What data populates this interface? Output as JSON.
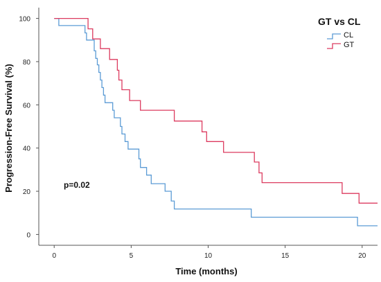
{
  "chart_data": {
    "type": "line",
    "step": true,
    "xlabel": "Time (months)",
    "ylabel": "Progression-Free Survival (%)",
    "xlim": [
      -1,
      21
    ],
    "ylim": [
      -5,
      105
    ],
    "xticks": [
      0,
      5,
      10,
      15,
      20
    ],
    "yticks": [
      0,
      20,
      40,
      60,
      80,
      100
    ],
    "legend": {
      "title": "GT vs CL",
      "position": "top-right"
    },
    "annotation": "p=0.02",
    "series": [
      {
        "name": "CL",
        "color": "#5b9bd5",
        "points": [
          [
            0,
            100
          ],
          [
            0.3,
            100
          ],
          [
            0.3,
            96.7
          ],
          [
            2.0,
            96.7
          ],
          [
            2.0,
            93.3
          ],
          [
            2.1,
            93.3
          ],
          [
            2.1,
            90
          ],
          [
            2.6,
            90
          ],
          [
            2.6,
            85
          ],
          [
            2.7,
            85
          ],
          [
            2.7,
            81.5
          ],
          [
            2.8,
            81.5
          ],
          [
            2.8,
            78.5
          ],
          [
            2.9,
            78.5
          ],
          [
            2.9,
            75
          ],
          [
            3.0,
            75
          ],
          [
            3.0,
            71.5
          ],
          [
            3.1,
            71.5
          ],
          [
            3.1,
            68
          ],
          [
            3.2,
            68
          ],
          [
            3.2,
            64.5
          ],
          [
            3.3,
            64.5
          ],
          [
            3.3,
            61
          ],
          [
            3.8,
            61
          ],
          [
            3.8,
            57.5
          ],
          [
            3.9,
            57.5
          ],
          [
            3.9,
            54
          ],
          [
            4.3,
            54
          ],
          [
            4.3,
            50
          ],
          [
            4.4,
            50
          ],
          [
            4.4,
            46.5
          ],
          [
            4.6,
            46.5
          ],
          [
            4.6,
            43
          ],
          [
            4.8,
            43
          ],
          [
            4.8,
            39.5
          ],
          [
            5.5,
            39.5
          ],
          [
            5.5,
            35
          ],
          [
            5.6,
            35
          ],
          [
            5.6,
            31
          ],
          [
            6.0,
            31
          ],
          [
            6.0,
            27.5
          ],
          [
            6.3,
            27.5
          ],
          [
            6.3,
            23.5
          ],
          [
            7.2,
            23.5
          ],
          [
            7.2,
            20
          ],
          [
            7.6,
            20
          ],
          [
            7.6,
            15.5
          ],
          [
            7.8,
            15.5
          ],
          [
            7.8,
            11.8
          ],
          [
            12.8,
            11.8
          ],
          [
            12.8,
            8
          ],
          [
            19.7,
            8
          ],
          [
            19.7,
            4
          ],
          [
            21,
            4
          ]
        ]
      },
      {
        "name": "GT",
        "color": "#dc3a5f",
        "points": [
          [
            0,
            100
          ],
          [
            2.2,
            100
          ],
          [
            2.2,
            95.2
          ],
          [
            2.5,
            95.2
          ],
          [
            2.5,
            90.5
          ],
          [
            3.0,
            90.5
          ],
          [
            3.0,
            86
          ],
          [
            3.6,
            86
          ],
          [
            3.6,
            81
          ],
          [
            4.1,
            81
          ],
          [
            4.1,
            76
          ],
          [
            4.2,
            76
          ],
          [
            4.2,
            71.5
          ],
          [
            4.4,
            71.5
          ],
          [
            4.4,
            67
          ],
          [
            4.9,
            67
          ],
          [
            4.9,
            62
          ],
          [
            5.6,
            62
          ],
          [
            5.6,
            57.5
          ],
          [
            7.8,
            57.5
          ],
          [
            7.8,
            52.5
          ],
          [
            9.6,
            52.5
          ],
          [
            9.6,
            47.5
          ],
          [
            9.9,
            47.5
          ],
          [
            9.9,
            43
          ],
          [
            11.0,
            43
          ],
          [
            11.0,
            38
          ],
          [
            13.0,
            38
          ],
          [
            13.0,
            33.5
          ],
          [
            13.3,
            33.5
          ],
          [
            13.3,
            28.5
          ],
          [
            13.5,
            28.5
          ],
          [
            13.5,
            24
          ],
          [
            18.7,
            24
          ],
          [
            18.7,
            19
          ],
          [
            19.8,
            19
          ],
          [
            19.8,
            14.5
          ],
          [
            21,
            14.5
          ]
        ]
      }
    ]
  }
}
